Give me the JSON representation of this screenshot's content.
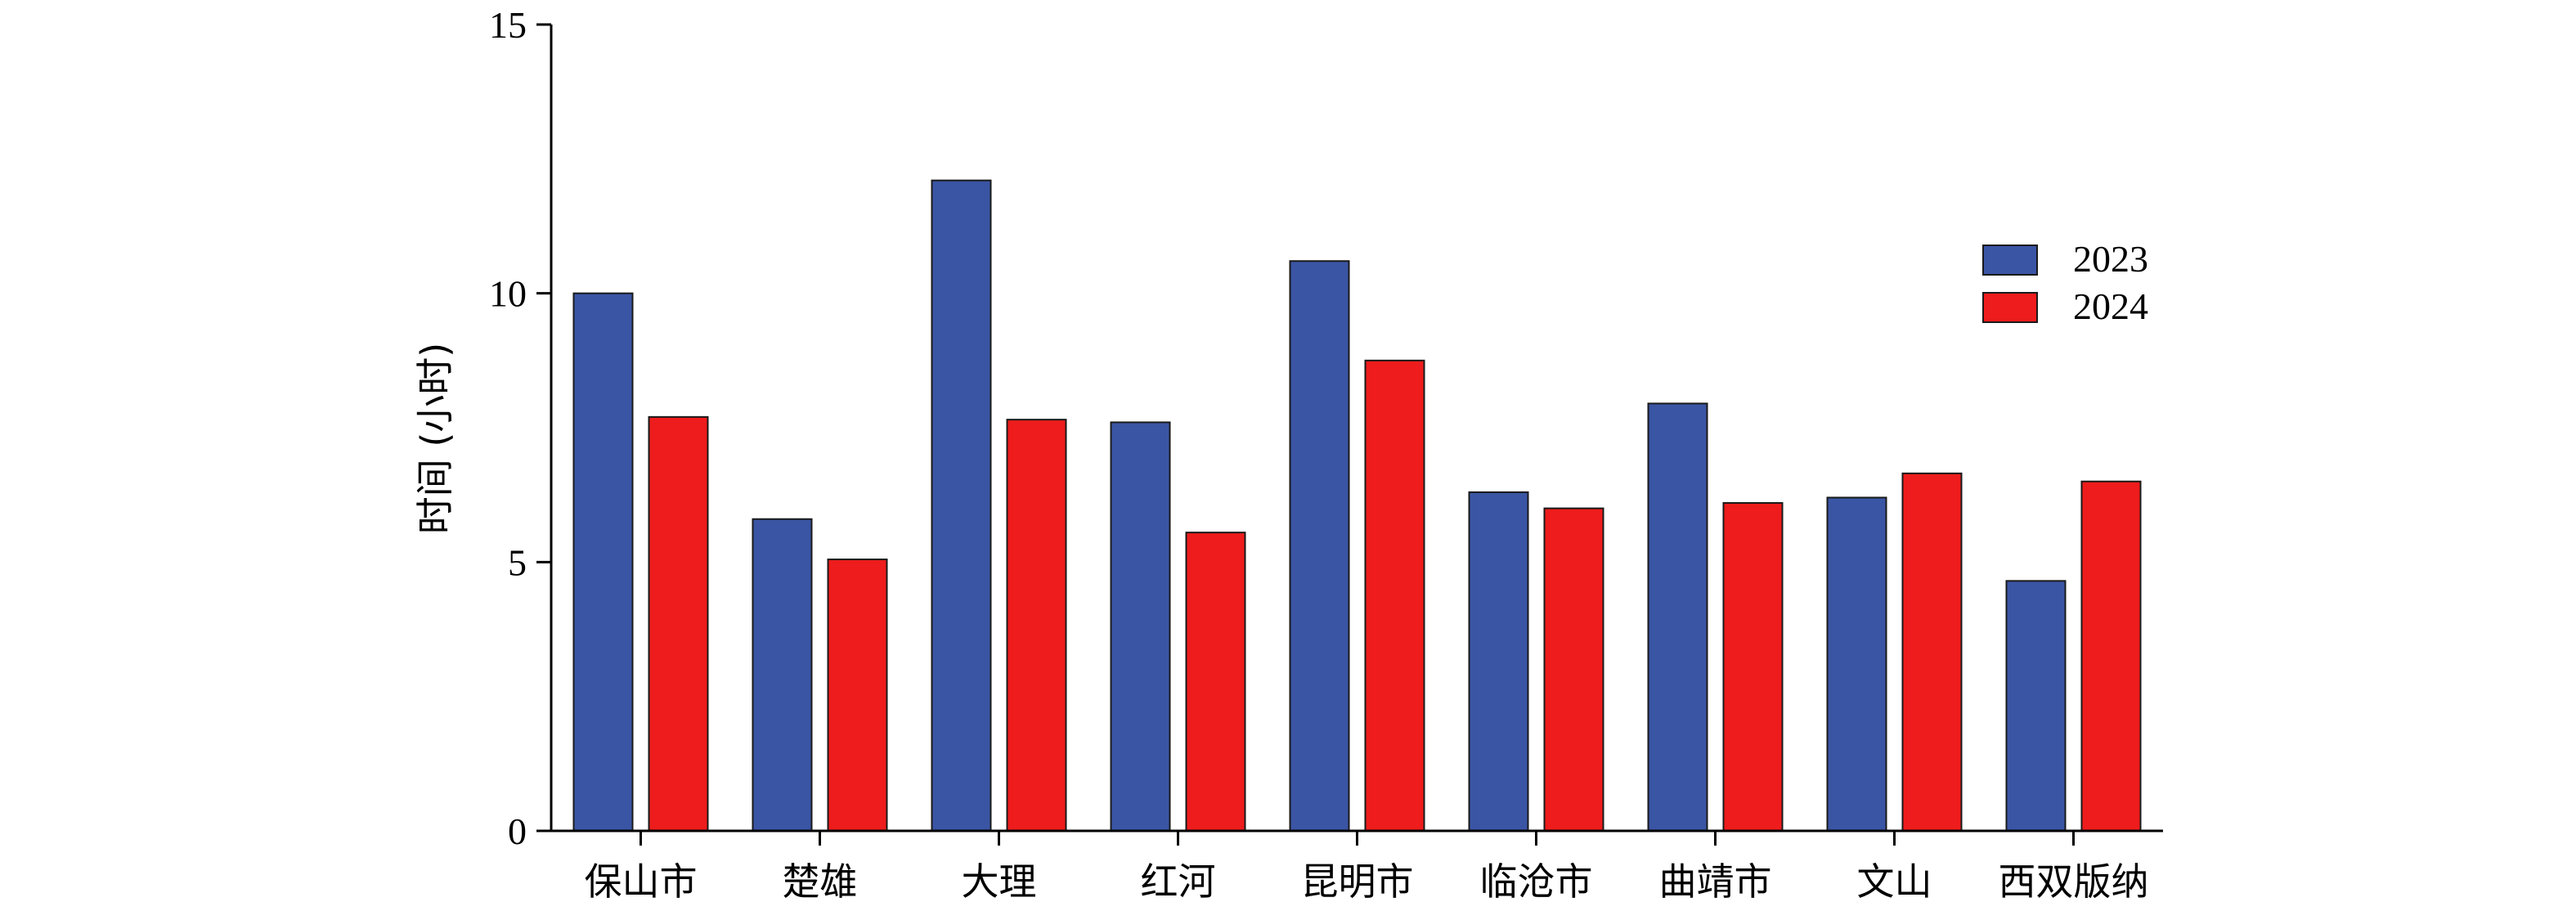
{
  "chart_data": {
    "type": "bar",
    "categories": [
      "保山市",
      "楚雄",
      "大理",
      "红河",
      "昆明市",
      "临沧市",
      "曲靖市",
      "文山",
      "西双版纳"
    ],
    "series": [
      {
        "name": "2023",
        "color": "#3a55a4",
        "values": [
          10.0,
          5.8,
          12.1,
          7.6,
          10.6,
          6.3,
          7.95,
          6.2,
          4.65
        ]
      },
      {
        "name": "2024",
        "color": "#ee1c1c",
        "values": [
          7.7,
          5.05,
          7.65,
          5.55,
          8.75,
          6.0,
          6.1,
          6.65,
          6.5
        ]
      }
    ],
    "xlabel": "",
    "ylabel": "时间 (小时)",
    "ylim": [
      0,
      15
    ],
    "yticks": [
      0,
      5,
      10,
      15
    ],
    "legend": "right",
    "grid": false
  }
}
